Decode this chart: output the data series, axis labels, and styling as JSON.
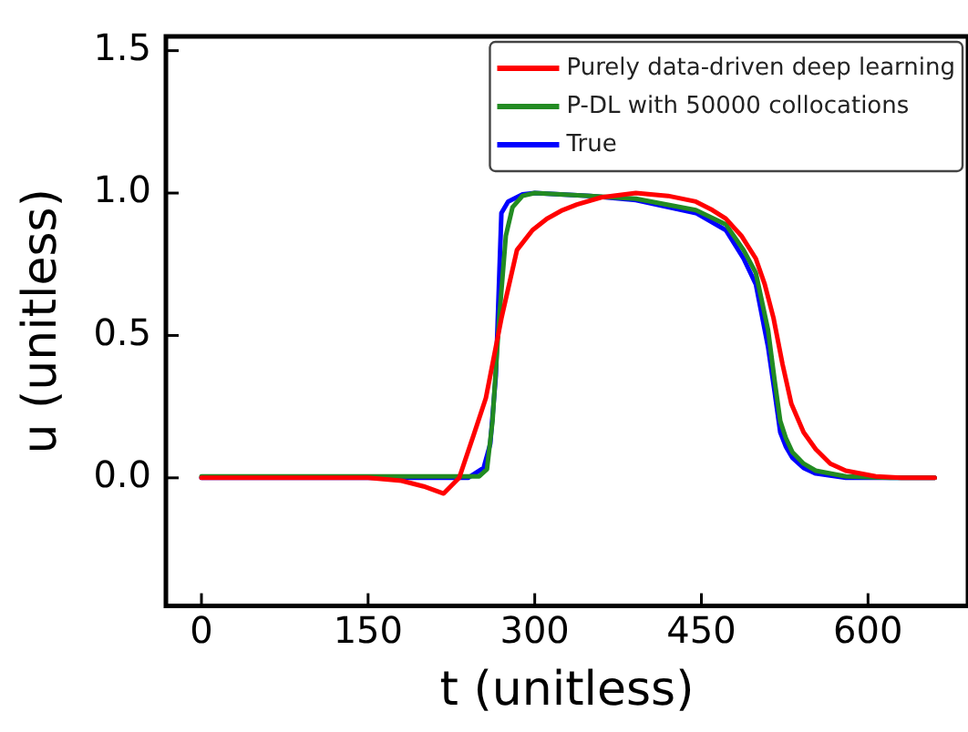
{
  "chart_data": {
    "type": "line",
    "xlabel": "t (unitless)",
    "ylabel": "u (unitless)",
    "xlim": [
      -32,
      690
    ],
    "ylim": [
      -0.45,
      1.55
    ],
    "xticks": [
      0,
      150,
      300,
      450,
      600
    ],
    "yticks": [
      {
        "value": 0,
        "label": "0.0"
      },
      {
        "value": 0.5,
        "label": "0.5"
      },
      {
        "value": 1,
        "label": "1.0"
      },
      {
        "value": 1.5,
        "label": "1.5"
      }
    ],
    "legend": "top right",
    "grid": false,
    "marker": "none",
    "line_style": "solid",
    "series": [
      {
        "name": "Purely data-driven deep learning",
        "color": "#ff0000",
        "x": [
          0,
          100,
          150,
          180,
          200,
          218,
          232,
          245,
          256,
          270,
          284,
          298,
          311,
          325,
          338,
          360,
          391,
          420,
          445,
          460,
          472,
          486,
          499,
          507,
          515,
          523,
          531,
          542,
          553,
          566,
          580,
          607,
          630,
          660
        ],
        "values": [
          0,
          0,
          0,
          -0.01,
          -0.03,
          -0.055,
          0,
          0.15,
          0.28,
          0.56,
          0.8,
          0.87,
          0.91,
          0.94,
          0.96,
          0.985,
          1.0,
          0.99,
          0.97,
          0.94,
          0.91,
          0.85,
          0.77,
          0.68,
          0.56,
          0.4,
          0.26,
          0.16,
          0.1,
          0.05,
          0.025,
          0.005,
          0,
          0
        ]
      },
      {
        "name": "P-DL with 50000 collocations",
        "color": "#228b22",
        "x": [
          0,
          100,
          200,
          250,
          257,
          262,
          268,
          274,
          280,
          289,
          300,
          350,
          391,
          445,
          472,
          488,
          499,
          510,
          516,
          521,
          526,
          532,
          542,
          553,
          580,
          620,
          660
        ],
        "values": [
          0.005,
          0.005,
          0.005,
          0.005,
          0.03,
          0.2,
          0.56,
          0.85,
          0.95,
          0.99,
          1.0,
          0.99,
          0.98,
          0.94,
          0.89,
          0.8,
          0.72,
          0.52,
          0.34,
          0.2,
          0.14,
          0.09,
          0.05,
          0.025,
          0.005,
          0,
          0
        ]
      },
      {
        "name": "True",
        "color": "#0000ff",
        "x": [
          0,
          100,
          200,
          240,
          254,
          260,
          265,
          270,
          276,
          289,
          300,
          350,
          391,
          445,
          472,
          488,
          499,
          510,
          516,
          521,
          526,
          532,
          542,
          553,
          580,
          620,
          660
        ],
        "values": [
          0,
          0,
          0,
          0,
          0.035,
          0.12,
          0.36,
          0.93,
          0.97,
          0.995,
          1.0,
          0.99,
          0.975,
          0.93,
          0.87,
          0.77,
          0.68,
          0.46,
          0.3,
          0.16,
          0.11,
          0.07,
          0.035,
          0.015,
          0,
          0,
          0
        ]
      }
    ]
  }
}
